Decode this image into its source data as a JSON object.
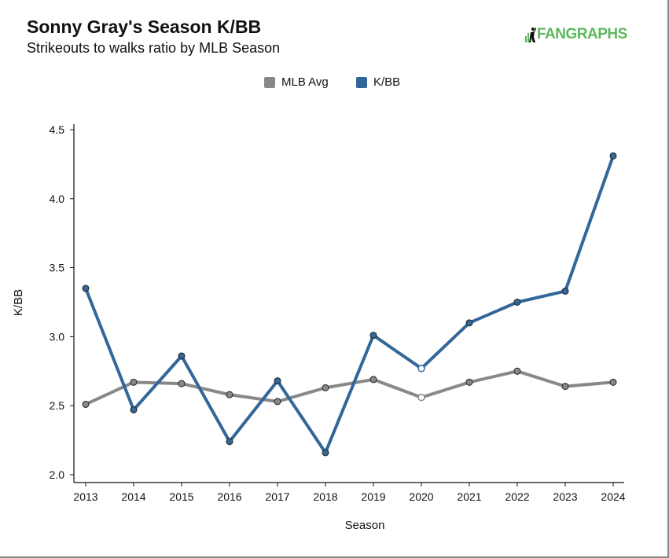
{
  "header": {
    "title": "Sonny Gray's Season K/BB",
    "subtitle": "Strikeouts to walks ratio by MLB Season",
    "logo_text": "FANGRAPHS"
  },
  "colors": {
    "kbb": "#336699",
    "avg": "#888888",
    "logo": "#5cb85c"
  },
  "chart_data": {
    "type": "line",
    "title": "Sonny Gray's Season K/BB",
    "subtitle": "Strikeouts to walks ratio by MLB Season",
    "xlabel": "Season",
    "ylabel": "K/BB",
    "ylim": [
      2.0,
      4.5
    ],
    "yticks": [
      "2.0",
      "2.5",
      "3.0",
      "3.5",
      "4.0",
      "4.5"
    ],
    "categories": [
      "2013",
      "2014",
      "2015",
      "2016",
      "2017",
      "2018",
      "2019",
      "2020",
      "2021",
      "2022",
      "2023",
      "2024"
    ],
    "legend_position": "top-center",
    "grid": false,
    "series": [
      {
        "name": "MLB Avg",
        "color": "#888888",
        "values": [
          2.51,
          2.67,
          2.66,
          2.58,
          2.53,
          2.63,
          2.69,
          2.56,
          2.67,
          2.75,
          2.64,
          2.67
        ]
      },
      {
        "name": "K/BB",
        "color": "#336699",
        "values": [
          3.35,
          2.47,
          2.86,
          2.24,
          2.68,
          2.16,
          3.01,
          2.77,
          3.1,
          3.25,
          3.33,
          4.31
        ]
      }
    ],
    "hollow_markers_at": [
      "2020"
    ]
  }
}
